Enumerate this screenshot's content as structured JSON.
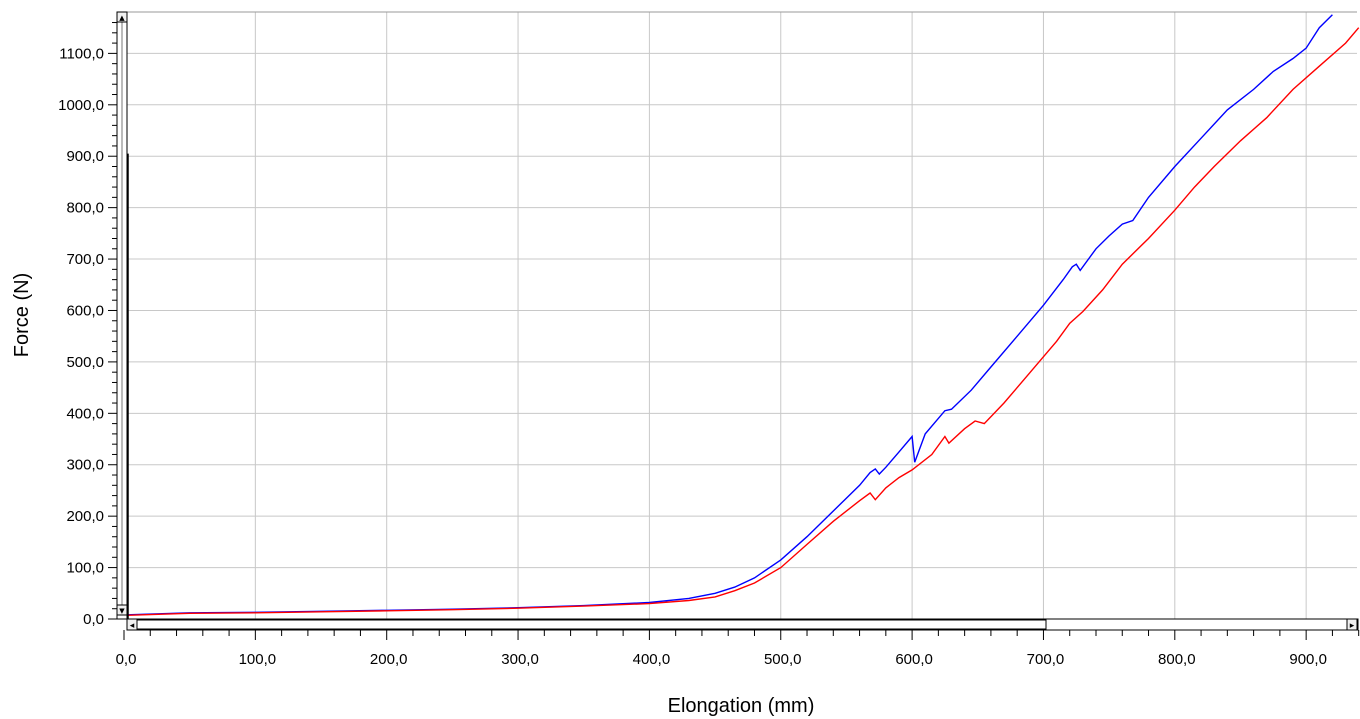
{
  "chart_data": {
    "type": "line",
    "xlabel": "Elongation (mm)",
    "ylabel": "Force (N)",
    "xlim": [
      0,
      940
    ],
    "ylim": [
      0,
      1175
    ],
    "x_ticks": [
      0,
      100,
      200,
      300,
      400,
      500,
      600,
      700,
      800,
      900
    ],
    "x_tick_labels": [
      "0,0",
      "100,0",
      "200,0",
      "300,0",
      "400,0",
      "500,0",
      "600,0",
      "700,0",
      "800,0",
      "900,0"
    ],
    "y_ticks": [
      0,
      100,
      200,
      300,
      400,
      500,
      600,
      700,
      800,
      900,
      1000,
      1100
    ],
    "y_tick_labels": [
      "0,0",
      "100,0",
      "200,0",
      "300,0",
      "400,0",
      "500,0",
      "600,0",
      "700,0",
      "800,0",
      "900,0",
      "1000,0",
      "1100,0"
    ],
    "grid": true,
    "series": [
      {
        "color": "#0000ff",
        "points": [
          [
            0,
            8
          ],
          [
            50,
            12
          ],
          [
            100,
            13
          ],
          [
            150,
            15
          ],
          [
            200,
            17
          ],
          [
            250,
            19
          ],
          [
            300,
            22
          ],
          [
            350,
            26
          ],
          [
            400,
            32
          ],
          [
            430,
            40
          ],
          [
            450,
            50
          ],
          [
            465,
            62
          ],
          [
            480,
            80
          ],
          [
            500,
            115
          ],
          [
            520,
            160
          ],
          [
            540,
            210
          ],
          [
            560,
            260
          ],
          [
            568,
            285
          ],
          [
            572,
            292
          ],
          [
            575,
            282
          ],
          [
            580,
            295
          ],
          [
            590,
            325
          ],
          [
            600,
            355
          ],
          [
            602,
            305
          ],
          [
            610,
            360
          ],
          [
            625,
            405
          ],
          [
            630,
            408
          ],
          [
            645,
            445
          ],
          [
            660,
            490
          ],
          [
            680,
            550
          ],
          [
            700,
            610
          ],
          [
            715,
            660
          ],
          [
            722,
            685
          ],
          [
            725,
            690
          ],
          [
            728,
            678
          ],
          [
            740,
            720
          ],
          [
            750,
            745
          ],
          [
            760,
            768
          ],
          [
            768,
            775
          ],
          [
            780,
            820
          ],
          [
            800,
            880
          ],
          [
            820,
            935
          ],
          [
            840,
            990
          ],
          [
            860,
            1030
          ],
          [
            875,
            1065
          ],
          [
            890,
            1090
          ],
          [
            900,
            1110
          ],
          [
            910,
            1150
          ],
          [
            920,
            1175
          ]
        ]
      },
      {
        "color": "#ff0000",
        "points": [
          [
            0,
            7
          ],
          [
            50,
            11
          ],
          [
            100,
            12
          ],
          [
            150,
            14
          ],
          [
            200,
            16
          ],
          [
            250,
            18
          ],
          [
            300,
            21
          ],
          [
            350,
            25
          ],
          [
            400,
            30
          ],
          [
            430,
            36
          ],
          [
            450,
            43
          ],
          [
            465,
            55
          ],
          [
            480,
            70
          ],
          [
            500,
            100
          ],
          [
            520,
            145
          ],
          [
            540,
            190
          ],
          [
            560,
            230
          ],
          [
            568,
            245
          ],
          [
            572,
            232
          ],
          [
            580,
            255
          ],
          [
            590,
            275
          ],
          [
            600,
            290
          ],
          [
            615,
            320
          ],
          [
            625,
            355
          ],
          [
            628,
            342
          ],
          [
            640,
            370
          ],
          [
            648,
            385
          ],
          [
            655,
            380
          ],
          [
            670,
            420
          ],
          [
            690,
            480
          ],
          [
            710,
            540
          ],
          [
            720,
            575
          ],
          [
            730,
            598
          ],
          [
            745,
            640
          ],
          [
            760,
            690
          ],
          [
            780,
            740
          ],
          [
            800,
            795
          ],
          [
            815,
            840
          ],
          [
            830,
            880
          ],
          [
            850,
            930
          ],
          [
            870,
            975
          ],
          [
            890,
            1030
          ],
          [
            910,
            1075
          ],
          [
            930,
            1120
          ],
          [
            940,
            1150
          ]
        ]
      }
    ]
  },
  "scrollbars": {
    "vertical": {
      "up_arrow": "▲",
      "down_arrow": "▼"
    },
    "horizontal": {
      "left_arrow": "◂",
      "right_arrow": "▸"
    }
  }
}
